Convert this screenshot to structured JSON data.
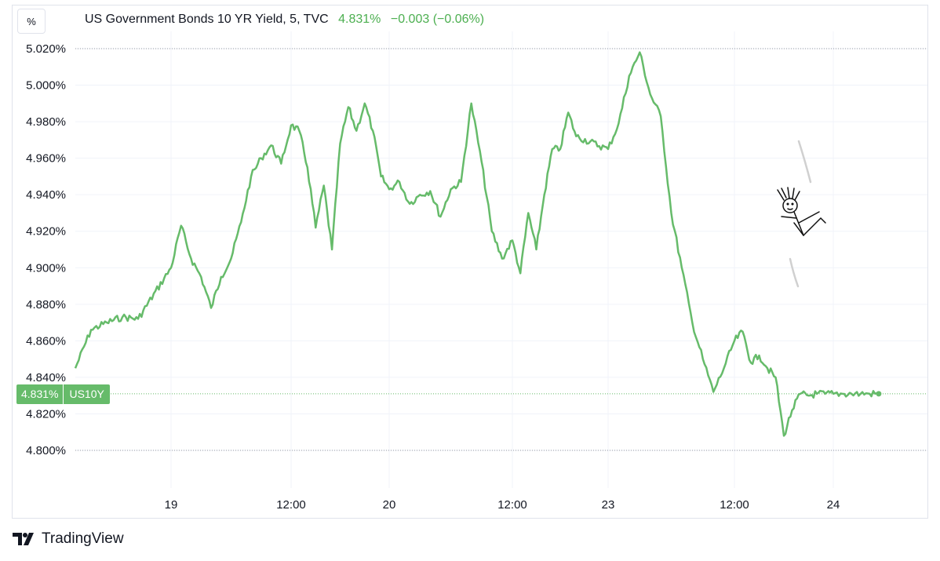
{
  "header": {
    "unit_button": "%",
    "title": "US Government Bonds 10 YR Yield, 5, TVC",
    "last_value": "4.831%",
    "change": "−0.003 (−0.06%)"
  },
  "price_label": {
    "price": "4.831%",
    "symbol": "US10Y"
  },
  "brand": {
    "name": "TradingView",
    "icon": "tradingview-logo-icon"
  },
  "colors": {
    "line": "#66bb6a",
    "positive_text": "#4caf50",
    "grid": "#f0f3fa",
    "dotted_lines": "#9598a1"
  },
  "chart_data": {
    "type": "line",
    "title": "US Government Bonds 10 YR Yield, 5, TVC",
    "xlabel": "",
    "ylabel": "",
    "series": [
      {
        "name": "US10Y",
        "x": [
          "18 21:00",
          "18 21:30",
          "18 22:00",
          "18 22:30",
          "18 23:00",
          "19 00:00",
          "19 01:00",
          "19 02:00",
          "19 03:00",
          "19 04:00",
          "19 05:00",
          "19 06:00",
          "19 07:00",
          "19 08:00",
          "19 09:00",
          "19 10:00",
          "19 11:00",
          "19 12:00",
          "19 13:00",
          "19 14:00",
          "19 15:00",
          "19 16:00",
          "19 17:00",
          "19 18:00",
          "19 19:00",
          "19 20:00",
          "19 21:00",
          "19 22:00",
          "19 23:00",
          "20 00:00",
          "20 01:00",
          "20 02:00",
          "20 03:00",
          "20 04:00",
          "20 05:00",
          "20 06:00",
          "20 07:00",
          "20 08:00",
          "20 09:00",
          "20 10:00",
          "20 11:00",
          "20 12:00",
          "20 13:00",
          "20 14:00",
          "20 15:00",
          "20 16:00",
          "20 17:00",
          "20 18:00",
          "20 19:00",
          "20 20:00",
          "23 00:00",
          "23 01:00",
          "23 02:00",
          "23 03:00",
          "23 04:00",
          "23 05:00",
          "23 06:00",
          "23 07:00",
          "23 08:00",
          "23 09:00",
          "23 10:00",
          "23 11:00",
          "23 12:00",
          "23 13:00",
          "23 14:00",
          "23 15:00",
          "23 16:00",
          "23 17:00",
          "23 18:00",
          "23 19:00",
          "23 20:00",
          "23 21:00",
          "23 22:00",
          "23 23:00",
          "24 00:00",
          "24 01:00",
          "24 02:00",
          "24 03:00",
          "24 04:00",
          "24 05:00"
        ],
        "values": [
          4.845,
          4.866,
          4.87,
          4.873,
          4.872,
          4.9,
          4.923,
          4.905,
          4.895,
          4.878,
          4.895,
          4.905,
          4.925,
          4.95,
          4.96,
          4.967,
          4.957,
          4.978,
          4.975,
          4.955,
          4.922,
          4.945,
          4.91,
          4.968,
          4.988,
          4.975,
          4.99,
          4.975,
          4.95,
          4.943,
          4.947,
          4.935,
          4.94,
          4.942,
          4.928,
          4.943,
          4.947,
          4.99,
          4.958,
          4.92,
          4.905,
          4.915,
          4.897,
          4.93,
          4.91,
          4.94,
          4.965,
          4.965,
          4.985,
          4.972,
          4.965,
          4.979,
          5.005,
          5.018,
          4.995,
          4.983,
          4.93,
          4.9,
          4.87,
          4.85,
          4.832,
          4.845,
          4.86,
          4.865,
          4.848,
          4.852,
          4.845,
          4.84,
          4.808,
          4.822,
          4.831,
          4.83,
          4.831,
          4.831,
          4.831,
          4.831,
          4.831,
          4.831,
          4.831,
          4.831
        ]
      }
    ],
    "y_ticks": [
      "5.020%",
      "5.000%",
      "4.980%",
      "4.960%",
      "4.940%",
      "4.920%",
      "4.900%",
      "4.880%",
      "4.860%",
      "4.840%",
      "4.820%",
      "4.800%"
    ],
    "y_tick_values": [
      5.02,
      5.0,
      4.98,
      4.96,
      4.94,
      4.92,
      4.9,
      4.88,
      4.86,
      4.84,
      4.82,
      4.8
    ],
    "x_ticks": [
      "19",
      "12:00",
      "20",
      "12:00",
      "23",
      "12:00",
      "24"
    ],
    "ylim": [
      4.787,
      5.04
    ],
    "grid": true,
    "last_value": 4.831,
    "high_value": 5.02,
    "low_value": 4.8
  }
}
